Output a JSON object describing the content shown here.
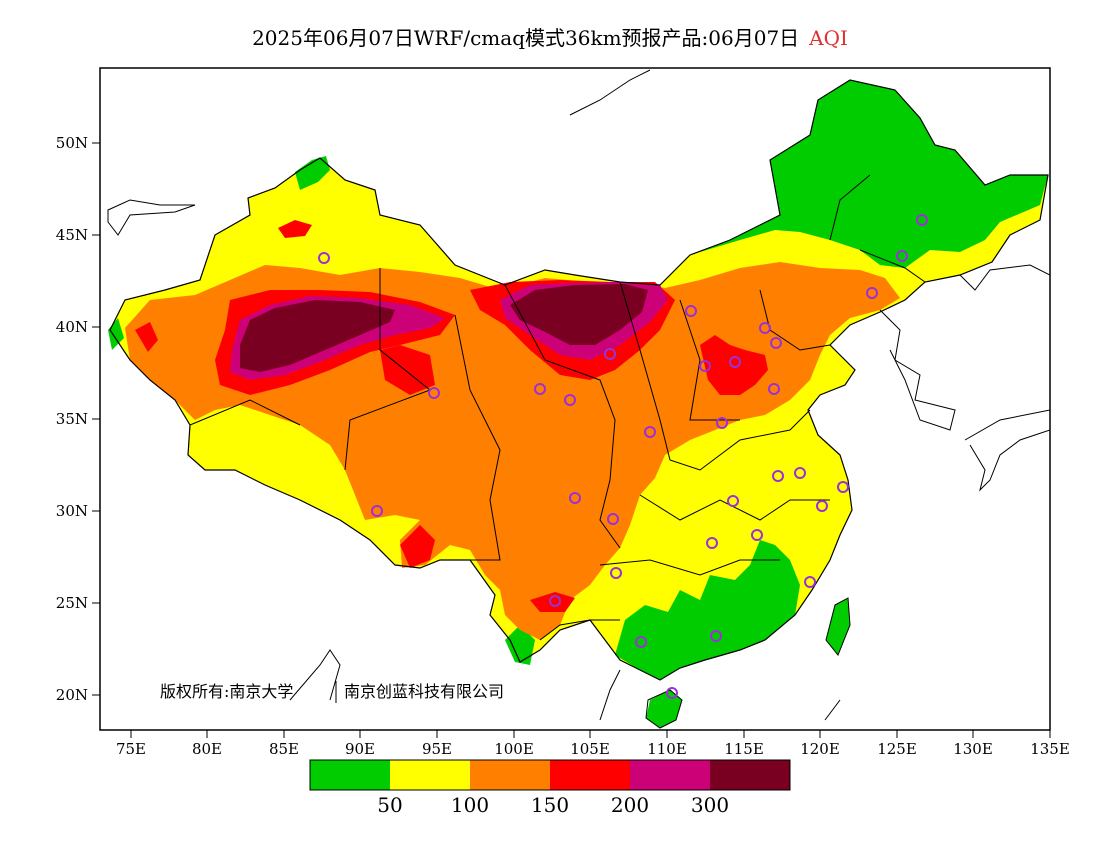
{
  "header": {
    "title": "2025年06月07日WRF/cmaq模式36km预报产品:06月07日",
    "product": "AQI",
    "product_color": "#e03030"
  },
  "map": {
    "lon_range": [
      73,
      135
    ],
    "lat_range": [
      18,
      54
    ],
    "lat_ticks": [
      "50N",
      "45N",
      "40N",
      "35N",
      "30N",
      "25N",
      "20N"
    ],
    "lon_ticks": [
      "75E",
      "80E",
      "85E",
      "90E",
      "95E",
      "100E",
      "105E",
      "110E",
      "115E",
      "120E",
      "125E",
      "130E",
      "135E"
    ],
    "copyright_left": "版权所有:南京大学",
    "copyright_right": "南京创蓝科技有限公司",
    "station_marker_color": "#9b30d9"
  },
  "legend": {
    "colors": [
      "#00cc00",
      "#ffff00",
      "#ff8000",
      "#ff0000",
      "#cc0077",
      "#7a0022"
    ],
    "labels": [
      "50",
      "100",
      "150",
      "200",
      "300"
    ]
  }
}
